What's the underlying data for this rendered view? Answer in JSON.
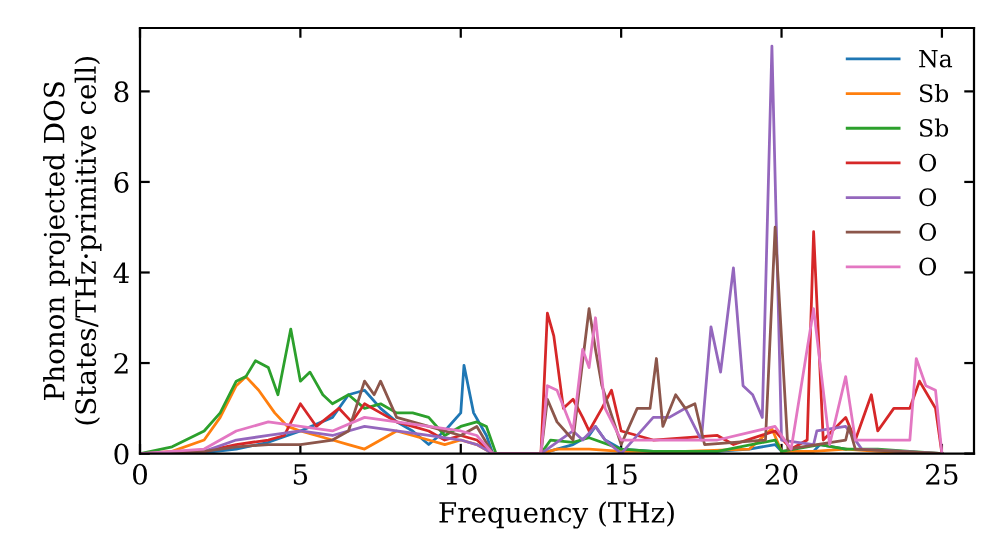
{
  "chart_data": {
    "type": "line",
    "xlabel": "Frequency (THz)",
    "ylabel": "Phonon projected DOS\n(States/THz·primitive cell)",
    "xlim": [
      0,
      26
    ],
    "ylim": [
      0,
      9.4
    ],
    "xticks": [
      0,
      5,
      10,
      15,
      20,
      25
    ],
    "yticks": [
      0,
      2,
      4,
      6,
      8
    ],
    "grid": false,
    "legend": "top right",
    "line_style": "solid",
    "marker": "none",
    "series": [
      {
        "name": "Na",
        "color": "#1f77b4",
        "x": [
          0,
          2,
          3,
          4,
          5,
          6,
          6.5,
          7,
          7.5,
          8,
          8.5,
          9,
          9.5,
          10,
          10.1,
          10.4,
          10.8,
          11,
          12.5,
          13,
          13.5,
          14,
          14.2,
          14.5,
          15,
          16,
          18,
          19,
          19.8,
          20,
          21,
          21.2,
          22
        ],
        "values": [
          0,
          0.02,
          0.1,
          0.25,
          0.5,
          0.8,
          1.3,
          1.4,
          1.0,
          0.7,
          0.5,
          0.2,
          0.5,
          0.9,
          1.95,
          0.9,
          0.4,
          0,
          0,
          0.1,
          0.2,
          0.4,
          0.6,
          0.3,
          0.1,
          0.05,
          0.05,
          0.1,
          0.2,
          0.05,
          0.05,
          0.2,
          0.1
        ]
      },
      {
        "name": "Sb",
        "color": "#ff7f0e",
        "x": [
          0,
          1,
          2,
          2.5,
          3,
          3.3,
          3.7,
          4.2,
          4.6,
          5,
          5.5,
          6,
          6.5,
          7,
          7.5,
          8,
          8.5,
          9,
          9.5,
          10,
          10.5,
          11,
          12.5,
          13,
          14,
          15,
          17,
          19,
          19.7,
          20,
          21,
          22,
          23,
          25
        ],
        "values": [
          0,
          0.05,
          0.3,
          0.8,
          1.5,
          1.7,
          1.4,
          0.9,
          0.6,
          0.5,
          0.4,
          0.3,
          0.2,
          0.1,
          0.3,
          0.5,
          0.4,
          0.3,
          0.2,
          0.3,
          0.2,
          0,
          0,
          0.1,
          0.1,
          0.05,
          0.05,
          0.1,
          0.55,
          0.05,
          0.05,
          0.1,
          0.05,
          0
        ]
      },
      {
        "name": "Sb",
        "color": "#2ca02c",
        "x": [
          0,
          1,
          2,
          2.5,
          3,
          3.3,
          3.6,
          4,
          4.3,
          4.7,
          5,
          5.3,
          5.7,
          6,
          6.5,
          7,
          7.5,
          8,
          8.5,
          9,
          9.5,
          10,
          10.5,
          10.8,
          11.1,
          12.5,
          12.8,
          13.5,
          14,
          15,
          16,
          18,
          19.8,
          20,
          21.2,
          22,
          23,
          24,
          25
        ],
        "values": [
          0,
          0.15,
          0.5,
          0.9,
          1.6,
          1.7,
          2.05,
          1.9,
          1.3,
          2.75,
          1.6,
          1.8,
          1.3,
          1.1,
          1.3,
          1.0,
          1.1,
          0.9,
          0.9,
          0.8,
          0.4,
          0.6,
          0.7,
          0.6,
          0,
          0,
          0.3,
          0.25,
          0.35,
          0.1,
          0.05,
          0.05,
          0.3,
          0.05,
          0.2,
          0.1,
          0.1,
          0.05,
          0
        ]
      },
      {
        "name": "O",
        "color": "#d62728",
        "x": [
          0,
          2,
          3,
          4,
          4.5,
          5,
          5.5,
          6.2,
          6.6,
          7,
          7.5,
          8,
          8.5,
          9,
          9.5,
          10,
          10.5,
          11,
          12.5,
          12.7,
          12.9,
          13.2,
          13.5,
          13.8,
          14,
          14.4,
          14.7,
          15,
          16,
          18,
          18.5,
          19.8,
          20.3,
          20.8,
          21,
          21.3,
          22,
          22.3,
          22.8,
          23,
          23.5,
          24,
          24.3,
          24.8,
          25
        ],
        "values": [
          0,
          0.05,
          0.2,
          0.3,
          0.4,
          1.1,
          0.6,
          1.0,
          0.7,
          1.1,
          0.9,
          0.7,
          0.6,
          0.5,
          0.3,
          0.4,
          0.3,
          0,
          0,
          3.1,
          2.6,
          1.0,
          1.2,
          0.8,
          0.5,
          1.0,
          1.4,
          0.5,
          0.3,
          0.4,
          0.2,
          0.5,
          0.1,
          0.3,
          4.9,
          0.3,
          0.8,
          0.3,
          1.3,
          0.5,
          1.0,
          1.0,
          1.6,
          1.0,
          0
        ]
      },
      {
        "name": "O",
        "color": "#9467bd",
        "x": [
          0,
          2,
          3,
          4,
          5,
          6,
          7,
          8,
          9,
          10,
          10.5,
          11,
          12.5,
          13.5,
          13.8,
          14.2,
          14.5,
          15,
          16,
          16.5,
          17,
          17.5,
          17.8,
          18.1,
          18.5,
          18.8,
          19.1,
          19.4,
          19.7,
          20,
          21,
          21.1,
          22,
          22.5,
          25
        ],
        "values": [
          0,
          0.05,
          0.3,
          0.4,
          0.5,
          0.4,
          0.6,
          0.5,
          0.4,
          0.3,
          0.2,
          0,
          0,
          0.5,
          0.3,
          0.6,
          0.3,
          0,
          0.8,
          0.8,
          1.0,
          0.3,
          2.8,
          1.8,
          4.1,
          1.5,
          1.3,
          0.8,
          9.0,
          0.3,
          0.2,
          0.5,
          0.6,
          0.1,
          0
        ]
      },
      {
        "name": "O",
        "color": "#8c564b",
        "x": [
          0,
          2,
          3,
          4,
          5,
          6,
          6.5,
          7,
          7.3,
          7.5,
          8,
          9,
          10,
          10.5,
          11,
          12.5,
          12.7,
          13,
          13.5,
          14,
          14.2,
          14.4,
          15,
          15.5,
          15.9,
          16.1,
          16.3,
          16.7,
          17,
          17.3,
          17.6,
          19.5,
          19.8,
          20.2,
          22,
          22.1,
          22.3,
          25
        ],
        "values": [
          0,
          0.05,
          0.15,
          0.2,
          0.2,
          0.3,
          0.5,
          1.6,
          1.3,
          1.6,
          0.8,
          0.6,
          0.4,
          0.6,
          0,
          0,
          1.2,
          0.7,
          0.3,
          3.2,
          2.3,
          1.5,
          0.2,
          1.0,
          1.0,
          2.1,
          0.6,
          1.3,
          1.0,
          1.1,
          0.2,
          0.3,
          5.0,
          0.1,
          0.3,
          0.6,
          0.1,
          0
        ]
      },
      {
        "name": "O",
        "color": "#e377c2",
        "x": [
          0,
          2,
          3,
          4,
          5,
          6,
          7,
          8,
          9,
          10,
          10.5,
          11,
          12.5,
          12.7,
          13,
          13.5,
          13.8,
          14,
          14.2,
          14.5,
          15,
          18,
          19.8,
          20.3,
          21,
          21.5,
          22,
          22.3,
          24,
          24.2,
          24.5,
          24.8,
          25
        ],
        "values": [
          0,
          0.1,
          0.5,
          0.7,
          0.6,
          0.5,
          0.8,
          0.7,
          0.6,
          0.5,
          0.4,
          0,
          0,
          1.5,
          1.4,
          0.5,
          2.3,
          1.9,
          3.0,
          1.0,
          0.3,
          0.3,
          0.6,
          0.1,
          3.2,
          0.2,
          1.7,
          0.3,
          0.3,
          2.1,
          1.5,
          1.4,
          0
        ]
      }
    ]
  }
}
